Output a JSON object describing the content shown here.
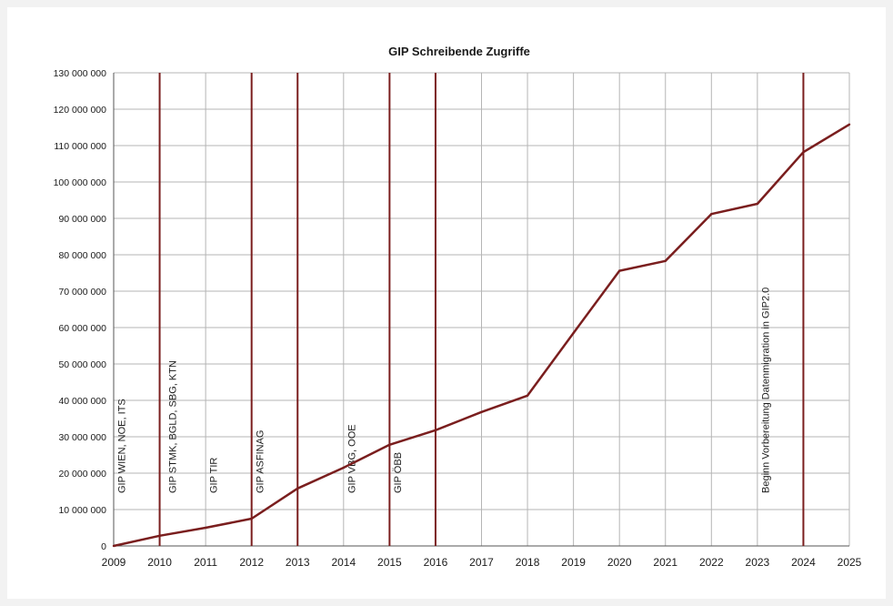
{
  "chart_data": {
    "type": "line",
    "title": "GIP Schreibende Zugriffe",
    "xlabel": "",
    "ylabel": "",
    "x": [
      2009,
      2010,
      2011,
      2012,
      2013,
      2014,
      2015,
      2016,
      2017,
      2018,
      2019,
      2020,
      2021,
      2022,
      2023,
      2024,
      2025
    ],
    "x_tick_labels": [
      "2009",
      "2010",
      "2011",
      "2012",
      "2013",
      "2014",
      "2015",
      "2016",
      "2017",
      "2018",
      "2019",
      "2020",
      "2021",
      "2022",
      "2023",
      "2024",
      "2025"
    ],
    "values": [
      0,
      2800000,
      5000000,
      7500000,
      15800000,
      21500000,
      27800000,
      31800000,
      36800000,
      41300000,
      58500000,
      75600000,
      78300000,
      91200000,
      94000000,
      108200000,
      115800000
    ],
    "ylim": [
      0,
      130000000
    ],
    "y_ticks": [
      0,
      10000000,
      20000000,
      30000000,
      40000000,
      50000000,
      60000000,
      70000000,
      80000000,
      90000000,
      100000000,
      110000000,
      120000000,
      130000000
    ],
    "y_tick_labels": [
      "0",
      "10 000 000",
      "20 000 000",
      "30 000 000",
      "40 000 000",
      "50 000 000",
      "60 000 000",
      "70 000 000",
      "80 000 000",
      "90 000 000",
      "100 000 000",
      "110 000 000",
      "120 000 000",
      "130 000 000"
    ],
    "grid": true,
    "line_color": "#7a1e1e",
    "marker_color": "#7a1e1e",
    "grid_color": "#b5b5b5",
    "events": [
      {
        "x": 2010,
        "label": "GIP WIEN, NOE, ITS",
        "label_pos": "left"
      },
      {
        "x": 2010,
        "label": "GIP STMK, BGLD, SBG, KTN",
        "label_pos": "right"
      },
      {
        "x": 2012,
        "label": "GIP TIR",
        "label_pos": "left"
      },
      {
        "x": 2013,
        "label": "GIP ASFINAG",
        "label_pos": "left"
      },
      {
        "x": 2015,
        "label": "GIP VBG, OOE",
        "label_pos": "left"
      },
      {
        "x": 2016,
        "label": "GIP ÖBB",
        "label_pos": "left"
      },
      {
        "x": 2024,
        "label": "Beginn Vorbereitung Datenmigration in GIP2.0",
        "label_pos": "left"
      }
    ]
  }
}
